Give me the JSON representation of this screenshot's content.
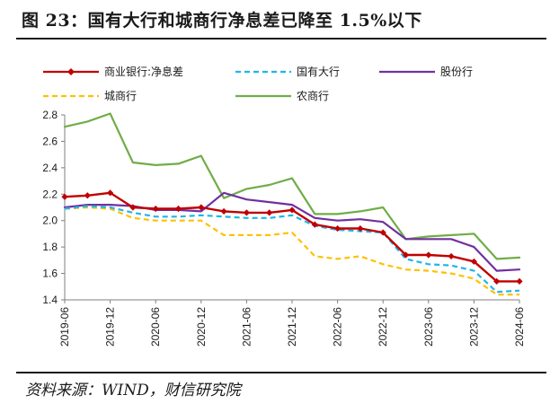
{
  "header": {
    "title": "图 23：国有大行和城商行净息差已降至 1.5%以下"
  },
  "footer": {
    "source": "资料来源：WIND，财信研究院"
  },
  "chart_data": {
    "type": "line",
    "title": "图 23：国有大行和城商行净息差已降至 1.5%以下",
    "xlabel": "",
    "ylabel": "",
    "ylim": [
      1.4,
      2.8
    ],
    "yticks": [
      "1.4",
      "1.6",
      "1.8",
      "2.0",
      "2.2",
      "2.4",
      "2.6",
      "2.8"
    ],
    "grid": false,
    "legend_position": "top",
    "x": [
      "2019-06",
      "2019-09",
      "2019-12",
      "2020-03",
      "2020-06",
      "2020-09",
      "2020-12",
      "2021-03",
      "2021-06",
      "2021-09",
      "2021-12",
      "2022-03",
      "2022-06",
      "2022-09",
      "2022-12",
      "2023-03",
      "2023-06",
      "2023-09",
      "2023-12",
      "2024-03",
      "2024-06"
    ],
    "xticks": [
      "2019-06",
      "2019-12",
      "2020-06",
      "2020-12",
      "2021-06",
      "2021-12",
      "2022-06",
      "2022-12",
      "2023-06",
      "2023-12",
      "2024-06"
    ],
    "series": [
      {
        "name": "商业银行:净息差",
        "color": "#c00000",
        "style": "solid-marker",
        "values": [
          2.18,
          2.19,
          2.21,
          2.1,
          2.09,
          2.09,
          2.1,
          2.07,
          2.06,
          2.06,
          2.08,
          1.97,
          1.94,
          1.94,
          1.91,
          1.74,
          1.74,
          1.73,
          1.69,
          1.54,
          1.54
        ]
      },
      {
        "name": "国有大行",
        "color": "#1fb5e8",
        "style": "dashed",
        "values": [
          2.09,
          2.11,
          2.1,
          2.06,
          2.03,
          2.03,
          2.04,
          2.03,
          2.02,
          2.02,
          2.04,
          1.96,
          1.93,
          1.92,
          1.91,
          1.71,
          1.67,
          1.66,
          1.62,
          1.46,
          1.47
        ]
      },
      {
        "name": "股份行",
        "color": "#7030a0",
        "style": "solid",
        "values": [
          2.1,
          2.12,
          2.12,
          2.11,
          2.08,
          2.08,
          2.07,
          2.21,
          2.16,
          2.14,
          2.12,
          2.02,
          2.0,
          2.01,
          1.99,
          1.86,
          1.86,
          1.86,
          1.8,
          1.62,
          1.63
        ]
      },
      {
        "name": "城商行",
        "color": "#ffc000",
        "style": "dashed",
        "values": [
          2.09,
          2.1,
          2.09,
          2.02,
          2.0,
          2.0,
          2.0,
          1.89,
          1.89,
          1.89,
          1.91,
          1.73,
          1.71,
          1.73,
          1.67,
          1.63,
          1.62,
          1.6,
          1.56,
          1.44,
          1.44
        ]
      },
      {
        "name": "农商行",
        "color": "#70ad47",
        "style": "solid",
        "values": [
          2.71,
          2.75,
          2.81,
          2.44,
          2.42,
          2.43,
          2.49,
          2.17,
          2.24,
          2.27,
          2.32,
          2.05,
          2.05,
          2.07,
          2.1,
          1.86,
          1.88,
          1.89,
          1.9,
          1.71,
          1.72
        ]
      }
    ]
  }
}
